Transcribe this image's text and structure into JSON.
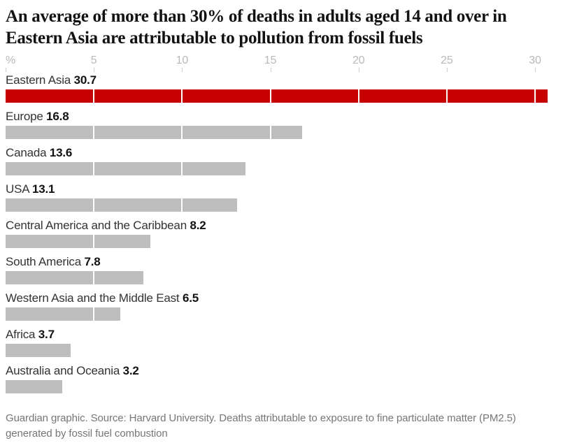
{
  "header": {
    "title": "An average of more than 30% of deaths in adults aged 14 and over in\nEastern Asia are attributable to pollution from fossil fuels"
  },
  "chart_data": {
    "type": "bar",
    "orientation": "horizontal",
    "title": "An average of more than 30% of deaths in adults aged 14 and over in Eastern Asia are attributable to pollution from fossil fuels",
    "categories": [
      "Eastern Asia",
      "Europe",
      "Canada",
      "USA",
      "Central America and the Caribbean",
      "South America",
      "Western Asia and the Middle East",
      "Africa",
      "Australia and Oceania"
    ],
    "values": [
      30.7,
      16.8,
      13.6,
      13.1,
      8.2,
      7.8,
      6.5,
      3.7,
      3.2
    ],
    "unit": "%",
    "xlabel": "%",
    "ylabel": "",
    "xlim": [
      0,
      30
    ],
    "xticks": [
      0,
      5,
      10,
      15,
      20,
      25,
      30
    ],
    "xtick_labels": [
      "%",
      "5",
      "10",
      "15",
      "20",
      "25",
      "30"
    ],
    "gridline_interval": 5,
    "grid_style": "white vertical lines drawn over bars",
    "legend": "none",
    "highlight_index": 0,
    "colors": {
      "highlight_bar": "#c70000",
      "bar": "#bdbdbd",
      "axis_text": "#b9b9b9",
      "tick": "#cccccc",
      "label_text": "#333333",
      "value_text": "#121212",
      "grid_over_bar": "#ffffff"
    }
  },
  "footer": {
    "source": "Guardian graphic. Source: Harvard University. Deaths attributable to exposure to fine particulate matter (PM2.5)\ngenerated by fossil fuel combustion"
  }
}
